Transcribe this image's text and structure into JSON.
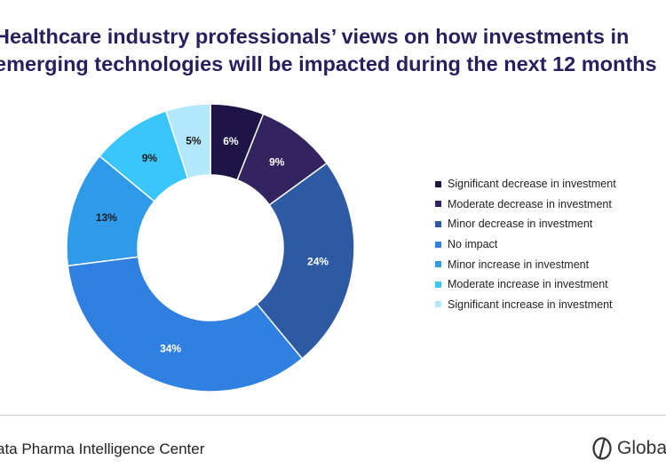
{
  "title": {
    "line1": "Healthcare industry professionals’ views on how investments in",
    "line2": "emerging technologies will be impacted during the next 12 months"
  },
  "chart_data": {
    "type": "pie",
    "donut": true,
    "title": "Healthcare industry professionals’ views on how investments in emerging technologies will be impacted during the next 12 months",
    "legend_position": "right",
    "slices": [
      {
        "label": "Significant decrease in investment",
        "value": 6,
        "display": "6%",
        "color": "#1e1446",
        "text_color": "#ffffff"
      },
      {
        "label": "Moderate decrease in investment",
        "value": 9,
        "display": "9%",
        "color": "#33235e",
        "text_color": "#ffffff"
      },
      {
        "label": "Minor decrease in investment",
        "value": 24,
        "display": "24%",
        "color": "#2e5aa4",
        "text_color": "#ffffff"
      },
      {
        "label": "No impact",
        "value": 34,
        "display": "34%",
        "color": "#2f80e0",
        "text_color": "#ffffff"
      },
      {
        "label": "Minor increase in investment",
        "value": 13,
        "display": "13%",
        "color": "#2e9ae8",
        "text_color": "#1a1a1a"
      },
      {
        "label": "Moderate increase in investment",
        "value": 9,
        "display": "9%",
        "color": "#3ac6fb",
        "text_color": "#1a1a1a"
      },
      {
        "label": "Significant increase in investment",
        "value": 5,
        "display": "5%",
        "color": "#b3e7fc",
        "text_color": "#1a1a1a"
      }
    ]
  },
  "footer": {
    "source": "ata Pharma Intelligence Center",
    "logo_text": "Globa"
  }
}
